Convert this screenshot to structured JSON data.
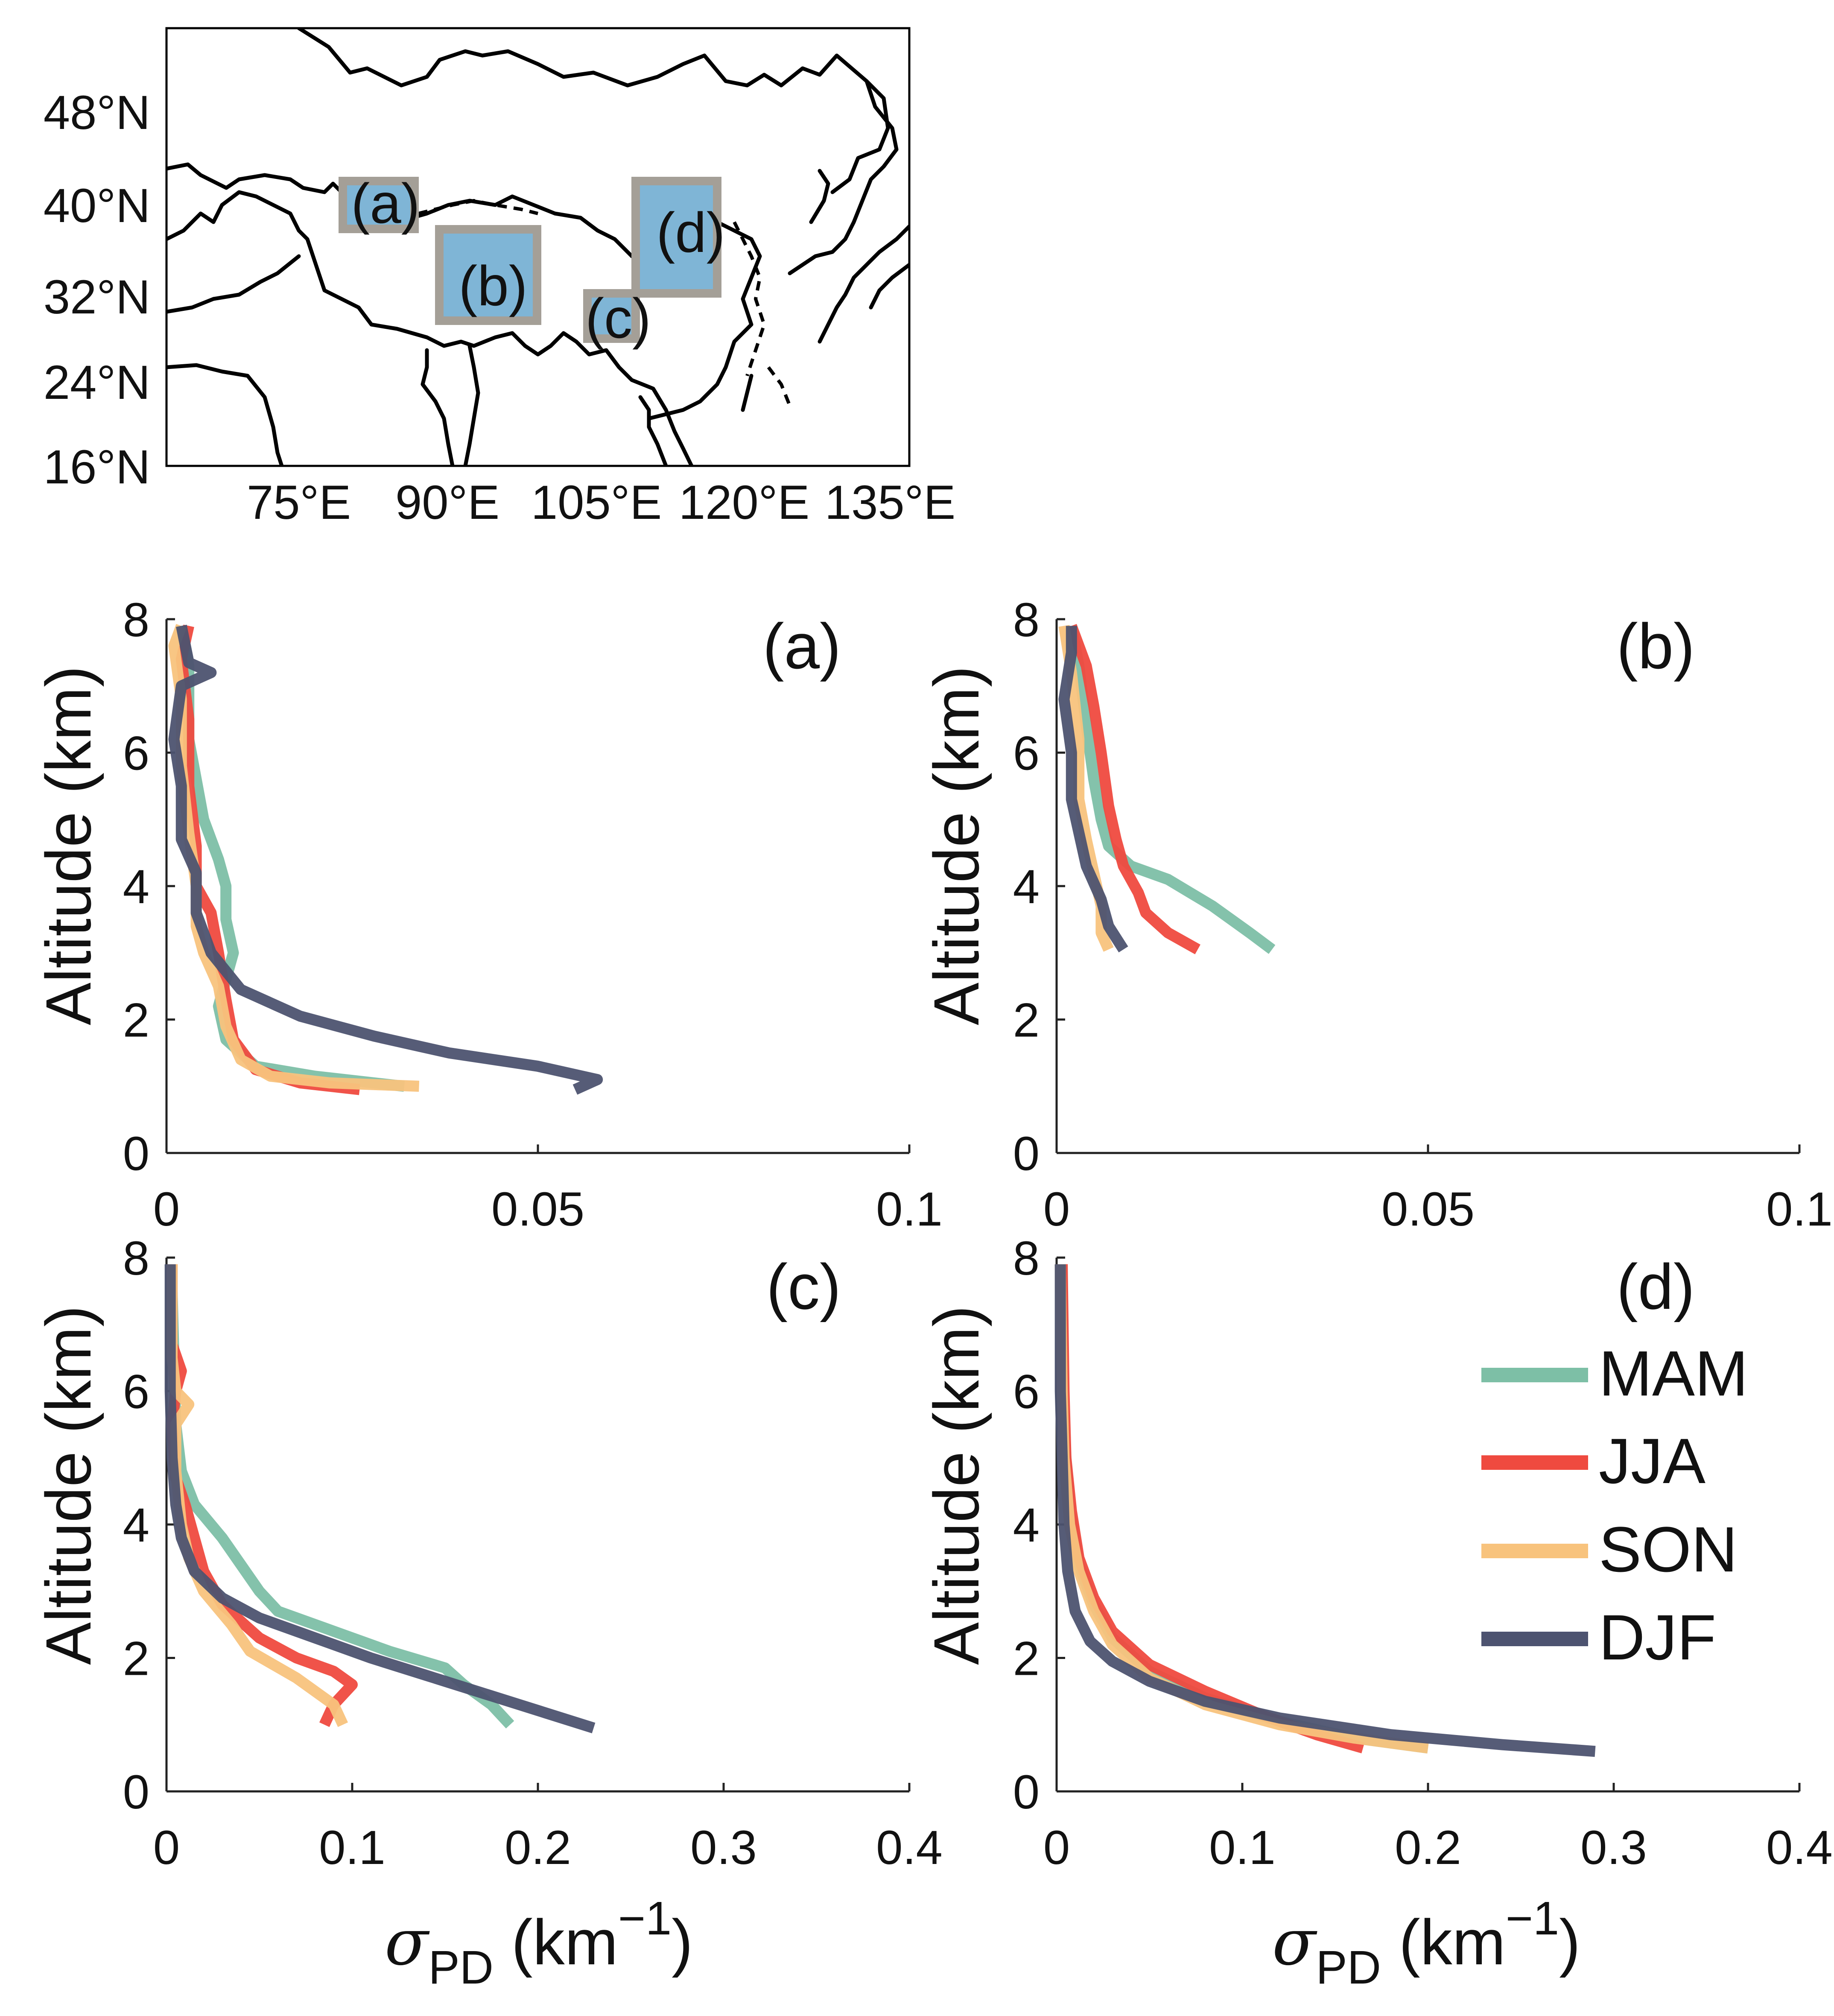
{
  "map": {
    "lat_labels": [
      "48°N",
      "40°N",
      "32°N",
      "24°N",
      "16°N"
    ],
    "lon_labels": [
      "75°E",
      "90°E",
      "105°E",
      "120°E",
      "135°E"
    ],
    "region_labels": [
      "(a)",
      "(b)",
      "(c)",
      "(d)"
    ],
    "colors": {
      "region_fill": "#7fb5d6",
      "region_border": "#a49f97",
      "coast": "#000000"
    }
  },
  "y_axis_label": "Altitude (km)",
  "x_axis_label": {
    "symbol": "σ",
    "subscript": "PD",
    "unit_open": " (km",
    "superscript": "−1",
    "unit_close": ")"
  },
  "legend": [
    {
      "name": "MAM",
      "color": "#7dbfa6"
    },
    {
      "name": "JJA",
      "color": "#ef4a3f"
    },
    {
      "name": "SON",
      "color": "#f8c37d"
    },
    {
      "name": "DJF",
      "color": "#4d5370"
    }
  ],
  "chart_data": [
    {
      "type": "line",
      "panel_label": "(a)",
      "xlim": [
        0,
        0.1
      ],
      "xticks": [
        "0",
        "0.05",
        "0.1"
      ],
      "ylim": [
        0,
        8
      ],
      "yticks": [
        "0",
        "2",
        "4",
        "6",
        "8"
      ],
      "series": [
        {
          "name": "MAM",
          "points": [
            [
              0.032,
              1.0
            ],
            [
              0.02,
              1.15
            ],
            [
              0.012,
              1.3
            ],
            [
              0.008,
              1.7
            ],
            [
              0.007,
              2.2
            ],
            [
              0.008,
              2.6
            ],
            [
              0.009,
              3.0
            ],
            [
              0.008,
              3.5
            ],
            [
              0.008,
              4.0
            ],
            [
              0.007,
              4.4
            ],
            [
              0.005,
              5.0
            ],
            [
              0.004,
              5.6
            ],
            [
              0.003,
              6.2
            ],
            [
              0.003,
              6.8
            ],
            [
              0.003,
              7.3
            ],
            [
              0.002,
              7.9
            ]
          ]
        },
        {
          "name": "JJA",
          "points": [
            [
              0.026,
              0.95
            ],
            [
              0.018,
              1.05
            ],
            [
              0.012,
              1.25
            ],
            [
              0.009,
              1.7
            ],
            [
              0.008,
              2.3
            ],
            [
              0.007,
              3.0
            ],
            [
              0.006,
              3.6
            ],
            [
              0.004,
              4.0
            ],
            [
              0.004,
              4.6
            ],
            [
              0.003,
              5.5
            ],
            [
              0.003,
              6.5
            ],
            [
              0.002,
              7.4
            ],
            [
              0.003,
              7.9
            ]
          ]
        },
        {
          "name": "SON",
          "points": [
            [
              0.034,
              1.0
            ],
            [
              0.022,
              1.05
            ],
            [
              0.014,
              1.15
            ],
            [
              0.01,
              1.4
            ],
            [
              0.008,
              1.9
            ],
            [
              0.007,
              2.5
            ],
            [
              0.005,
              3.0
            ],
            [
              0.004,
              3.4
            ],
            [
              0.004,
              4.0
            ],
            [
              0.003,
              4.8
            ],
            [
              0.002,
              5.8
            ],
            [
              0.002,
              6.8
            ],
            [
              0.001,
              7.6
            ],
            [
              0.002,
              7.9
            ]
          ]
        },
        {
          "name": "DJF",
          "points": [
            [
              0.055,
              0.95
            ],
            [
              0.058,
              1.1
            ],
            [
              0.05,
              1.3
            ],
            [
              0.038,
              1.5
            ],
            [
              0.028,
              1.75
            ],
            [
              0.018,
              2.05
            ],
            [
              0.01,
              2.45
            ],
            [
              0.006,
              3.0
            ],
            [
              0.004,
              3.6
            ],
            [
              0.004,
              4.2
            ],
            [
              0.002,
              4.7
            ],
            [
              0.002,
              5.5
            ],
            [
              0.001,
              6.2
            ],
            [
              0.002,
              7.0
            ],
            [
              0.006,
              7.2
            ],
            [
              0.003,
              7.35
            ],
            [
              0.002,
              7.9
            ]
          ]
        }
      ]
    },
    {
      "type": "line",
      "panel_label": "(b)",
      "xlim": [
        0,
        0.1
      ],
      "xticks": [
        "0",
        "0.05",
        "0.1"
      ],
      "ylim": [
        0,
        8
      ],
      "yticks": [
        "0",
        "2",
        "4",
        "6",
        "8"
      ],
      "series": [
        {
          "name": "MAM",
          "points": [
            [
              0.029,
              3.05
            ],
            [
              0.026,
              3.3
            ],
            [
              0.021,
              3.7
            ],
            [
              0.015,
              4.1
            ],
            [
              0.01,
              4.3
            ],
            [
              0.007,
              4.6
            ],
            [
              0.006,
              5.0
            ],
            [
              0.005,
              5.6
            ],
            [
              0.004,
              6.4
            ],
            [
              0.003,
              7.3
            ],
            [
              0.002,
              7.9
            ]
          ]
        },
        {
          "name": "JJA",
          "points": [
            [
              0.019,
              3.05
            ],
            [
              0.015,
              3.3
            ],
            [
              0.012,
              3.6
            ],
            [
              0.011,
              3.9
            ],
            [
              0.009,
              4.3
            ],
            [
              0.008,
              4.7
            ],
            [
              0.007,
              5.2
            ],
            [
              0.006,
              6.0
            ],
            [
              0.005,
              6.7
            ],
            [
              0.004,
              7.3
            ],
            [
              0.002,
              7.9
            ]
          ]
        },
        {
          "name": "SON",
          "points": [
            [
              0.007,
              3.05
            ],
            [
              0.006,
              3.3
            ],
            [
              0.006,
              3.7
            ],
            [
              0.005,
              4.2
            ],
            [
              0.004,
              4.7
            ],
            [
              0.003,
              5.3
            ],
            [
              0.003,
              6.2
            ],
            [
              0.002,
              7.2
            ],
            [
              0.001,
              7.9
            ]
          ]
        },
        {
          "name": "DJF",
          "points": [
            [
              0.009,
              3.05
            ],
            [
              0.007,
              3.4
            ],
            [
              0.006,
              3.8
            ],
            [
              0.004,
              4.3
            ],
            [
              0.003,
              4.8
            ],
            [
              0.002,
              5.3
            ],
            [
              0.002,
              6.0
            ],
            [
              0.001,
              6.8
            ],
            [
              0.002,
              7.5
            ],
            [
              0.002,
              7.9
            ]
          ]
        }
      ]
    },
    {
      "type": "line",
      "panel_label": "(c)",
      "xlim": [
        0,
        0.4
      ],
      "xticks": [
        "0",
        "0.1",
        "0.2",
        "0.3",
        "0.4"
      ],
      "ylim": [
        0,
        8
      ],
      "yticks": [
        "0",
        "2",
        "4",
        "6",
        "8"
      ],
      "series": [
        {
          "name": "MAM",
          "points": [
            [
              0.185,
              1.0
            ],
            [
              0.175,
              1.3
            ],
            [
              0.16,
              1.6
            ],
            [
              0.15,
              1.85
            ],
            [
              0.12,
              2.1
            ],
            [
              0.09,
              2.4
            ],
            [
              0.06,
              2.7
            ],
            [
              0.05,
              3.0
            ],
            [
              0.04,
              3.4
            ],
            [
              0.03,
              3.8
            ],
            [
              0.015,
              4.3
            ],
            [
              0.008,
              4.8
            ],
            [
              0.005,
              5.5
            ],
            [
              0.004,
              6.5
            ],
            [
              0.003,
              7.5
            ],
            [
              0.003,
              7.9
            ]
          ]
        },
        {
          "name": "JJA",
          "points": [
            [
              0.085,
              1.0
            ],
            [
              0.09,
              1.3
            ],
            [
              0.1,
              1.6
            ],
            [
              0.09,
              1.8
            ],
            [
              0.07,
              2.0
            ],
            [
              0.05,
              2.3
            ],
            [
              0.03,
              2.8
            ],
            [
              0.02,
              3.3
            ],
            [
              0.015,
              3.8
            ],
            [
              0.01,
              4.3
            ],
            [
              0.005,
              4.7
            ],
            [
              0.003,
              5.5
            ],
            [
              0.005,
              6.0
            ],
            [
              0.008,
              6.3
            ],
            [
              0.003,
              6.7
            ],
            [
              0.003,
              7.9
            ]
          ]
        },
        {
          "name": "SON",
          "points": [
            [
              0.095,
              1.0
            ],
            [
              0.09,
              1.3
            ],
            [
              0.07,
              1.7
            ],
            [
              0.045,
              2.1
            ],
            [
              0.035,
              2.5
            ],
            [
              0.02,
              3.0
            ],
            [
              0.012,
              3.5
            ],
            [
              0.008,
              4.0
            ],
            [
              0.005,
              4.8
            ],
            [
              0.005,
              5.5
            ],
            [
              0.012,
              5.8
            ],
            [
              0.005,
              6.0
            ],
            [
              0.003,
              6.5
            ],
            [
              0.003,
              7.9
            ]
          ]
        },
        {
          "name": "DJF",
          "points": [
            [
              0.23,
              0.95
            ],
            [
              0.19,
              1.3
            ],
            [
              0.15,
              1.65
            ],
            [
              0.11,
              2.0
            ],
            [
              0.08,
              2.3
            ],
            [
              0.05,
              2.6
            ],
            [
              0.03,
              2.9
            ],
            [
              0.015,
              3.3
            ],
            [
              0.008,
              3.8
            ],
            [
              0.005,
              4.3
            ],
            [
              0.003,
              5.0
            ],
            [
              0.002,
              6.0
            ],
            [
              0.002,
              7.0
            ],
            [
              0.002,
              7.9
            ]
          ]
        }
      ]
    },
    {
      "type": "line",
      "panel_label": "(d)",
      "xlim": [
        0,
        0.4
      ],
      "xticks": [
        "0",
        "0.1",
        "0.2",
        "0.3",
        "0.4"
      ],
      "ylim": [
        0,
        8
      ],
      "yticks": [
        "0",
        "2",
        "4",
        "6",
        "8"
      ],
      "series": [
        {
          "name": "MAM",
          "points": [
            [
              0.2,
              0.65
            ],
            [
              0.16,
              0.8
            ],
            [
              0.12,
              1.05
            ],
            [
              0.08,
              1.4
            ],
            [
              0.05,
              1.8
            ],
            [
              0.03,
              2.3
            ],
            [
              0.02,
              2.8
            ],
            [
              0.012,
              3.4
            ],
            [
              0.007,
              4.2
            ],
            [
              0.005,
              5.0
            ],
            [
              0.003,
              6.0
            ],
            [
              0.003,
              7.9
            ]
          ]
        },
        {
          "name": "JJA",
          "points": [
            [
              0.165,
              0.65
            ],
            [
              0.14,
              0.85
            ],
            [
              0.11,
              1.15
            ],
            [
              0.08,
              1.5
            ],
            [
              0.05,
              1.9
            ],
            [
              0.03,
              2.4
            ],
            [
              0.02,
              2.9
            ],
            [
              0.012,
              3.5
            ],
            [
              0.008,
              4.2
            ],
            [
              0.005,
              5.0
            ],
            [
              0.004,
              6.0
            ],
            [
              0.003,
              7.9
            ]
          ]
        },
        {
          "name": "SON",
          "points": [
            [
              0.2,
              0.65
            ],
            [
              0.16,
              0.8
            ],
            [
              0.12,
              1.0
            ],
            [
              0.08,
              1.3
            ],
            [
              0.05,
              1.7
            ],
            [
              0.03,
              2.2
            ],
            [
              0.02,
              2.7
            ],
            [
              0.012,
              3.3
            ],
            [
              0.007,
              4.0
            ],
            [
              0.004,
              5.0
            ],
            [
              0.003,
              6.0
            ],
            [
              0.002,
              7.9
            ]
          ]
        },
        {
          "name": "DJF",
          "points": [
            [
              0.29,
              0.6
            ],
            [
              0.24,
              0.7
            ],
            [
              0.18,
              0.85
            ],
            [
              0.12,
              1.1
            ],
            [
              0.08,
              1.35
            ],
            [
              0.05,
              1.65
            ],
            [
              0.03,
              1.95
            ],
            [
              0.018,
              2.25
            ],
            [
              0.01,
              2.7
            ],
            [
              0.006,
              3.3
            ],
            [
              0.004,
              4.0
            ],
            [
              0.003,
              5.0
            ],
            [
              0.002,
              6.0
            ],
            [
              0.002,
              7.9
            ]
          ]
        }
      ]
    }
  ]
}
